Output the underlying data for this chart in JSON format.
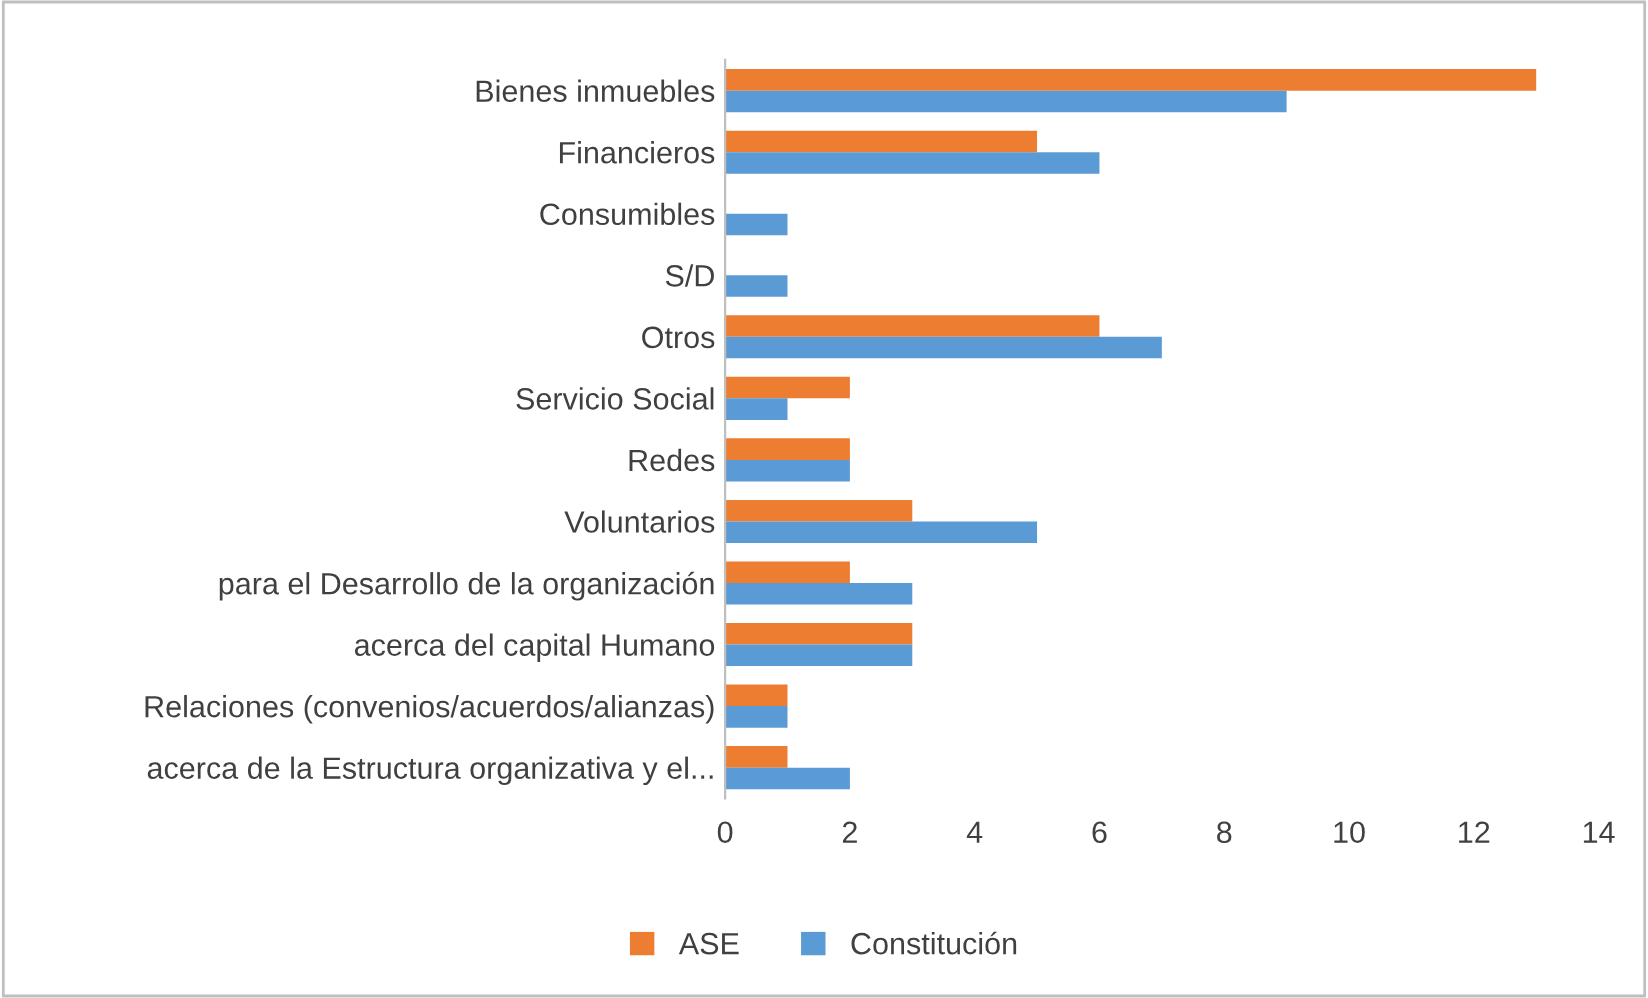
{
  "chart_data": {
    "type": "bar",
    "orientation": "horizontal",
    "categories": [
      "Bienes inmuebles",
      "Financieros",
      "Consumibles",
      "S/D",
      "Otros",
      "Servicio Social",
      "Redes",
      "Voluntarios",
      "para el Desarrollo de la organización",
      "acerca del capital Humano",
      "Relaciones (convenios/acuerdos/alianzas)",
      "acerca de la Estructura organizativa y el..."
    ],
    "series": [
      {
        "name": "ASE",
        "color": "#ed7d31",
        "values": [
          13,
          5,
          null,
          null,
          6,
          2,
          2,
          3,
          2,
          3,
          1,
          1
        ]
      },
      {
        "name": "Constitución",
        "color": "#5b9bd5",
        "values": [
          9,
          6,
          1,
          1,
          7,
          1,
          2,
          5,
          3,
          3,
          1,
          2
        ]
      }
    ],
    "xlim": [
      0,
      14
    ],
    "xticks": [
      0,
      2,
      4,
      6,
      8,
      10,
      12,
      14
    ],
    "grid": false,
    "legend": "bottom"
  }
}
